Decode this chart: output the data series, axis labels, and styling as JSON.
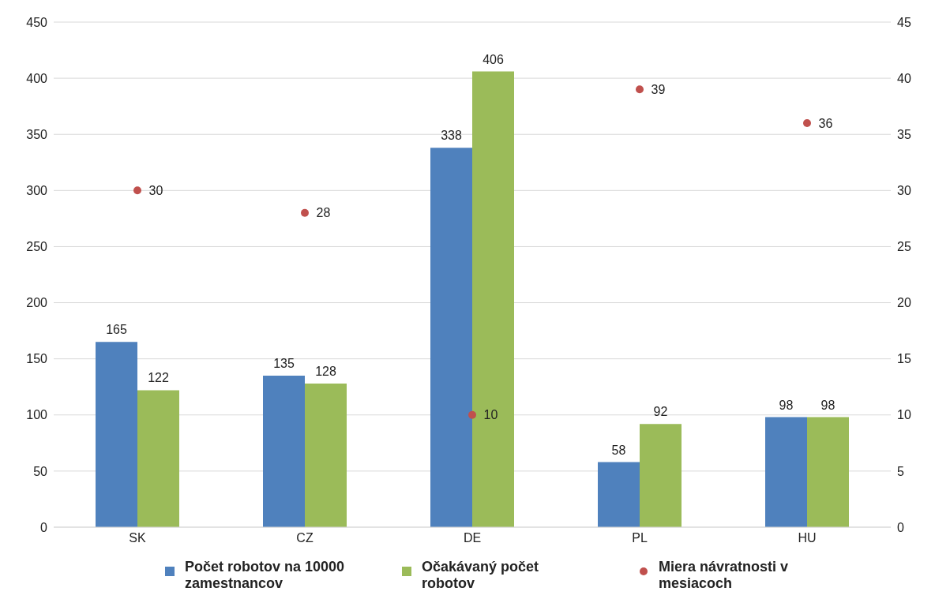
{
  "chart_data": {
    "type": "bar",
    "categories": [
      "SK",
      "CZ",
      "DE",
      "PL",
      "HU"
    ],
    "series": [
      {
        "name": "Počet robotov na 10000 zamestnancov",
        "color": "#4f81bd",
        "values": [
          165,
          135,
          338,
          58,
          98
        ]
      },
      {
        "name": "Očakávaný počet robotov",
        "color": "#9bbb59",
        "values": [
          122,
          128,
          406,
          92,
          98
        ]
      },
      {
        "name": "Miera návratnosti v mesiacoch",
        "color": "#c0504d",
        "type": "scatter",
        "axis": "y2",
        "values": [
          30,
          28,
          10,
          39,
          36
        ]
      }
    ],
    "ylim": [
      0,
      450
    ],
    "yticks": [
      0,
      50,
      100,
      150,
      200,
      250,
      300,
      350,
      400,
      450
    ],
    "y2lim": [
      0,
      45
    ],
    "y2ticks": [
      0,
      5,
      10,
      15,
      20,
      25,
      30,
      35,
      40,
      45
    ],
    "grid": "y",
    "legend": "bottom",
    "data_labels": true,
    "marker": "circle"
  }
}
